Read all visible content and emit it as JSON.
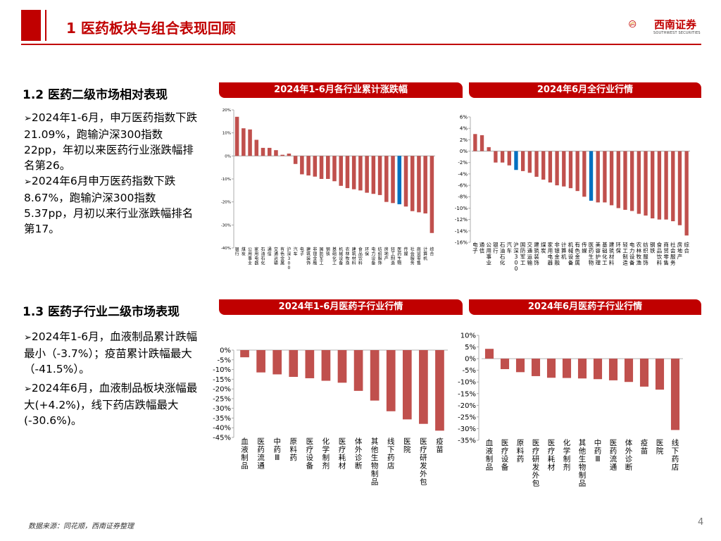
{
  "header": {
    "title": "1 医药板块与组合表现回顾",
    "logo_name": "西南证券",
    "logo_sub": "SOUTHWEST SECURITIES"
  },
  "section_1_2": {
    "title": "1.2 医药二级市场相对表现",
    "bullets": [
      "2024年1-6月，申万医药指数下跌21.09%，跑输沪深300指数22pp，年初以来医药行业涨跌幅排名第26。",
      "2024年6月申万医药指数下跌8.67%，跑输沪深300指数5.37pp，月初以来行业涨跌幅排名第17。"
    ]
  },
  "section_1_3": {
    "title": "1.3 医药子行业二级市场表现",
    "bullets": [
      "2024年1-6月，血液制品累计跌幅最小（-3.7%）；疫苗累计跌幅最大（-41.5%）。",
      "2024年6月，血液制品板块涨幅最大(+4.2%)，线下药店跌幅最大(-30.6%)。"
    ]
  },
  "colors": {
    "accent": "#c00000",
    "bar": "#c0504d",
    "highlight": "#0070c0"
  },
  "footer": {
    "source": "数据来源：同花顺，西南证券整理",
    "page": "4"
  },
  "chart_data": [
    {
      "id": "chart1",
      "type": "bar",
      "title": "2024年1-6月各行业累计涨跌幅",
      "ylim": [
        -40,
        20
      ],
      "yticks": [
        20,
        10,
        0,
        -10,
        -20,
        -30,
        -40
      ],
      "tick_suffix": "%",
      "highlight": "医药生物",
      "categories": [
        "银行",
        "煤炭",
        "公用事业",
        "家用电器",
        "石油石化",
        "通信",
        "交通运输",
        "有色金属",
        "沪深300",
        "汽车",
        "电子",
        "建筑装饰",
        "非银金融",
        "国防军工",
        "钢铁",
        "基础化工",
        "机械设备",
        "农林牧渔",
        "建筑材料",
        "食品饮料",
        "环保",
        "电力设备",
        "纺织服饰",
        "房地产",
        "轻工制造",
        "医药生物",
        "传媒",
        "社会服务",
        "商贸零售",
        "计算机",
        "综合"
      ],
      "values": [
        17,
        12,
        11.5,
        7,
        3.5,
        3.5,
        2.5,
        0.5,
        1,
        -3.5,
        -8,
        -8.5,
        -9,
        -10,
        -10,
        -11,
        -13,
        -14,
        -14.5,
        -15,
        -16,
        -16.5,
        -17,
        -20,
        -20.5,
        -21,
        -22,
        -24,
        -24.5,
        -25,
        -33.5
      ]
    },
    {
      "id": "chart2",
      "type": "bar",
      "title": "2024年6月全行业行情",
      "ylim": [
        -16,
        6
      ],
      "yticks": [
        6,
        4,
        2,
        0,
        -2,
        -4,
        -6,
        -8,
        -10,
        -12,
        -14,
        -16
      ],
      "tick_suffix": "%",
      "highlights": [
        "医药生物",
        "沪深300"
      ],
      "categories": [
        "电子",
        "通信",
        "公用事业",
        "银行",
        "石油石化",
        "汽车",
        "沪深300",
        "国防军工",
        "交通运输",
        "建筑装饰",
        "煤炭",
        "家用电器",
        "非银金融",
        "计算机",
        "机械设备",
        "有色金属",
        "传媒",
        "医药生物",
        "美容护理",
        "基础化工",
        "建筑材料",
        "环保",
        "轻工制造",
        "电力设备",
        "农林牧渔",
        "纺织服饰",
        "钢铁",
        "食品饮料",
        "商贸零售",
        "社会服务",
        "房地产",
        "综合"
      ],
      "values": [
        3,
        2.8,
        0.7,
        -2,
        -2,
        -2.5,
        -3.3,
        -3.5,
        -3.8,
        -4.5,
        -5,
        -5.5,
        -6,
        -6.2,
        -6.5,
        -7,
        -8,
        -8.7,
        -9,
        -9,
        -9.5,
        -10,
        -10.3,
        -10.5,
        -11,
        -11.3,
        -11.8,
        -12,
        -12,
        -12.3,
        -13,
        -14.8
      ]
    },
    {
      "id": "chart3",
      "type": "bar",
      "title": "2024年1-6月医药子行业行情",
      "ylim": [
        -45,
        0
      ],
      "yticks": [
        0,
        -5,
        -10,
        -15,
        -20,
        -25,
        -30,
        -35,
        -40,
        -45
      ],
      "tick_suffix": "%",
      "categories": [
        "血液制品",
        "医药流通",
        "中药Ⅲ",
        "原料药",
        "医疗设备",
        "化学制剂",
        "医疗耗材",
        "体外诊断",
        "其他生物制品",
        "线下药店",
        "医院",
        "医疗研发外包",
        "疫苗"
      ],
      "values": [
        -3.7,
        -11.5,
        -12.5,
        -13.8,
        -14.5,
        -15.8,
        -16.8,
        -21,
        -26,
        -31.5,
        -35.7,
        -38,
        -41.5
      ]
    },
    {
      "id": "chart4",
      "type": "bar",
      "title": "2024年6月医药子行业行情",
      "ylim": [
        -35,
        10
      ],
      "yticks": [
        10,
        5,
        0,
        -5,
        -10,
        -15,
        -20,
        -25,
        -30,
        -35
      ],
      "tick_suffix": "%",
      "categories": [
        "血液制品",
        "医疗设备",
        "原料药",
        "医疗研发外包",
        "医疗耗材",
        "化学制剂",
        "其他生物制品",
        "中药Ⅲ",
        "医药流通",
        "体外诊断",
        "疫苗",
        "医院",
        "线下药店"
      ],
      "values": [
        4.2,
        -4.5,
        -5.8,
        -7.5,
        -8.2,
        -8.3,
        -8.5,
        -8.8,
        -9.3,
        -10,
        -12,
        -13.3,
        -30.6
      ]
    }
  ]
}
